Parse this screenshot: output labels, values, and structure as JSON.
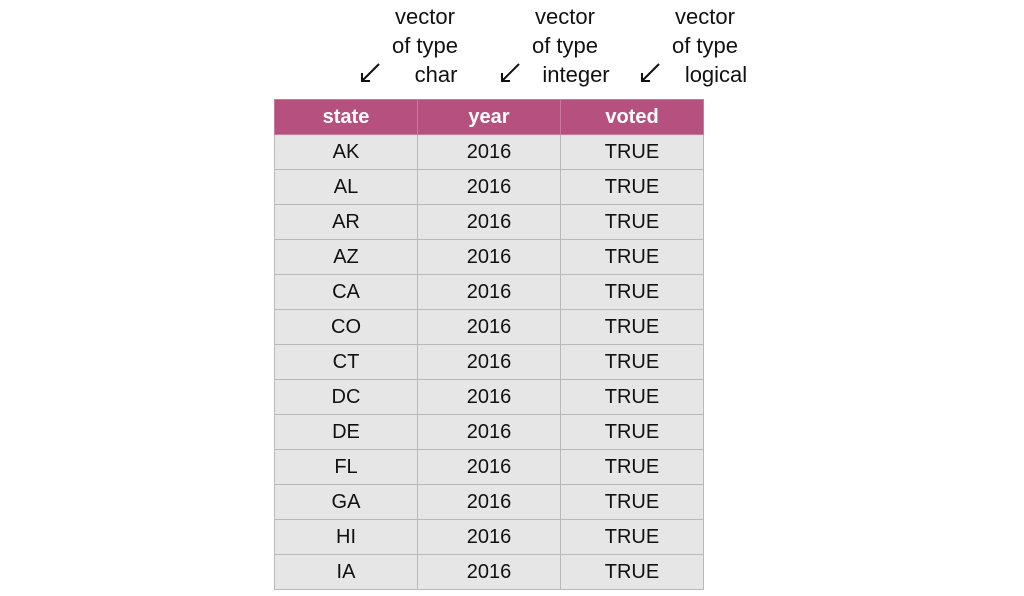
{
  "annotations": [
    {
      "line1": "vector",
      "line2": "of type",
      "line3": "char"
    },
    {
      "line1": "vector",
      "line2": "of type",
      "line3": "integer"
    },
    {
      "line1": "vector",
      "line2": "of type",
      "line3": "logical"
    }
  ],
  "table": {
    "headers": [
      "state",
      "year",
      "voted"
    ],
    "header_color": "#b5507f",
    "cell_color": "#e6e6e6",
    "rows": [
      [
        "AK",
        "2016",
        "TRUE"
      ],
      [
        "AL",
        "2016",
        "TRUE"
      ],
      [
        "AR",
        "2016",
        "TRUE"
      ],
      [
        "AZ",
        "2016",
        "TRUE"
      ],
      [
        "CA",
        "2016",
        "TRUE"
      ],
      [
        "CO",
        "2016",
        "TRUE"
      ],
      [
        "CT",
        "2016",
        "TRUE"
      ],
      [
        "DC",
        "2016",
        "TRUE"
      ],
      [
        "DE",
        "2016",
        "TRUE"
      ],
      [
        "FL",
        "2016",
        "TRUE"
      ],
      [
        "GA",
        "2016",
        "TRUE"
      ],
      [
        "HI",
        "2016",
        "TRUE"
      ],
      [
        "IA",
        "2016",
        "TRUE"
      ]
    ]
  }
}
